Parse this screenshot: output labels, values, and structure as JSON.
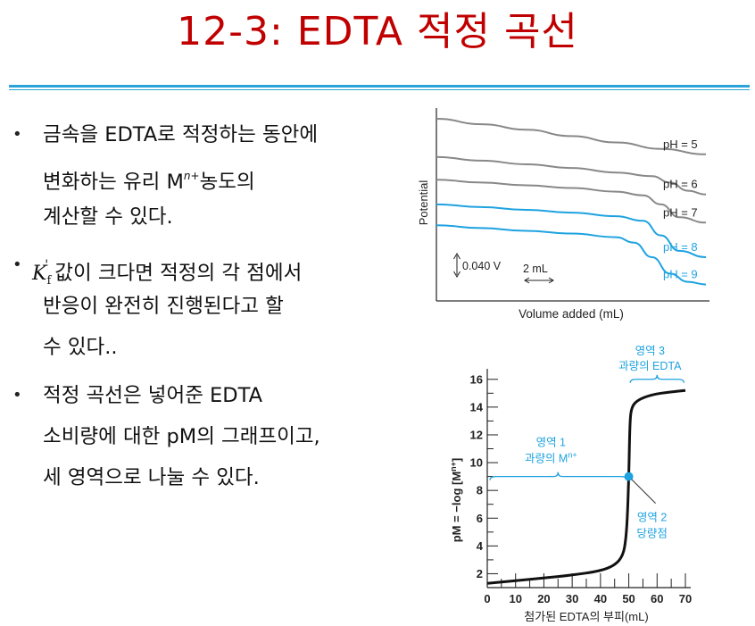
{
  "slide": {
    "title": "12-3: EDTA 적정 곡선"
  },
  "bullets": [
    {
      "lines": [
        "금속을 EDTA로 적정하는 동안에",
        "변화하는 유리 M",
        "계산할 수 있다."
      ],
      "superscript": "n+",
      "line2_suffix": "농도의"
    },
    {
      "symbol": "K",
      "symbol_sub": "f",
      "symbol_prime": "'",
      "lines": [
        "값이 크다면 적정의 각 점에서",
        "반응이 완전히 진행된다고 할",
        "수 있다.."
      ]
    },
    {
      "lines": [
        "적정 곡선은 넣어준 EDTA",
        "소비량에 대한 pM의 그래프이고,",
        "세 영역으로 나눌 수 있다."
      ]
    }
  ],
  "chart_data": [
    {
      "type": "line",
      "title": "",
      "xlabel": "Volume added (mL)",
      "ylabel": "Potential",
      "x_unit": "mL",
      "series": [
        {
          "name": "pH = 5",
          "color": "#888888",
          "x": [
            0,
            5,
            10,
            15,
            20,
            25,
            30
          ],
          "values": [
            0.1,
            0.094,
            0.088,
            0.081,
            0.074,
            0.067,
            0.061
          ]
        },
        {
          "name": "pH = 6",
          "color": "#888888",
          "x": [
            0,
            5,
            10,
            15,
            20,
            24,
            26,
            28,
            30
          ],
          "values": [
            0.058,
            0.054,
            0.05,
            0.046,
            0.041,
            0.037,
            0.03,
            0.021,
            0.017
          ]
        },
        {
          "name": "pH = 7",
          "color": "#888888",
          "x": [
            0,
            5,
            10,
            15,
            20,
            23,
            25,
            27,
            30
          ],
          "values": [
            0.033,
            0.03,
            0.027,
            0.024,
            0.02,
            0.016,
            0.006,
            -0.008,
            -0.014
          ]
        },
        {
          "name": "pH = 8",
          "color": "#1fa3e0",
          "x": [
            0,
            5,
            10,
            15,
            20,
            23,
            25,
            27,
            30
          ],
          "values": [
            0.006,
            0.003,
            0.0,
            -0.003,
            -0.007,
            -0.012,
            -0.028,
            -0.045,
            -0.052
          ]
        },
        {
          "name": "pH = 9",
          "color": "#1fa3e0",
          "x": [
            0,
            5,
            10,
            15,
            20,
            22,
            24,
            26,
            28,
            30
          ],
          "values": [
            -0.017,
            -0.02,
            -0.023,
            -0.026,
            -0.03,
            -0.036,
            -0.052,
            -0.07,
            -0.079,
            -0.082
          ]
        }
      ],
      "scale_bar_y": "0.040 V",
      "scale_bar_x": "2 mL",
      "grid": false,
      "legend": "inline-right"
    },
    {
      "type": "line",
      "title": "",
      "xlabel": "첨가된 EDTA의 부피(mL)",
      "ylabel": "pM = −log [M",
      "ylabel_sup": "n+",
      "ylabel_tail": "]",
      "x_ticks": [
        "0",
        "10",
        "20",
        "30",
        "40",
        "50",
        "60",
        "70"
      ],
      "y_ticks": [
        "2",
        "4",
        "6",
        "8",
        "10",
        "12",
        "14",
        "16"
      ],
      "xlim": [
        0,
        70
      ],
      "ylim": [
        1,
        16.5
      ],
      "series": [
        {
          "name": "",
          "color": "#111111",
          "x": [
            0,
            10,
            20,
            30,
            40,
            45,
            48,
            49,
            49.6,
            50,
            50.4,
            51,
            53,
            58,
            65,
            70
          ],
          "values": [
            1.3,
            1.5,
            1.7,
            1.9,
            2.2,
            2.6,
            3.3,
            4.5,
            6.5,
            9.0,
            13.0,
            14.0,
            14.5,
            14.9,
            15.1,
            15.2
          ]
        }
      ],
      "equivalence_point": {
        "x": 50,
        "y": 9.0,
        "color": "#1fa3e0"
      },
      "regions": [
        {
          "label_line1": "영역 1",
          "label_line2": "과량의 M",
          "label_sup": "n+"
        },
        {
          "label_line1": "영역 2",
          "label_line2": "당량점"
        },
        {
          "label_line1": "영역 3",
          "label_line2": "과량의 EDTA"
        }
      ],
      "grid": false
    }
  ]
}
